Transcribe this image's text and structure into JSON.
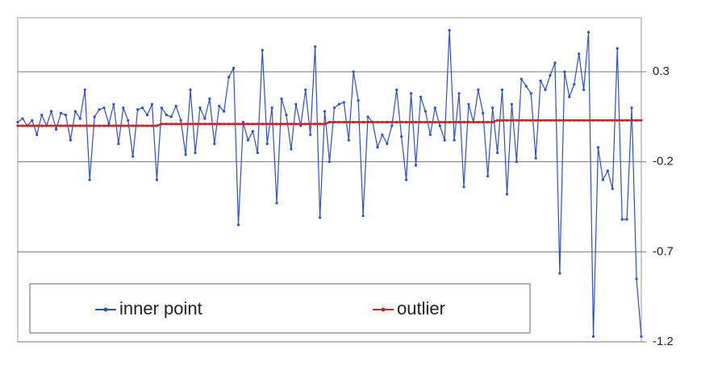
{
  "chart_data": {
    "type": "line",
    "series": [
      {
        "name": "inner point",
        "color": "#2a4fd0",
        "values": [
          0.02,
          0.04,
          0.0,
          0.03,
          -0.05,
          0.06,
          0.0,
          0.08,
          -0.02,
          0.07,
          0.06,
          -0.08,
          0.08,
          0.04,
          0.2,
          -0.3,
          0.05,
          0.09,
          0.1,
          0.01,
          0.12,
          -0.1,
          0.1,
          0.03,
          -0.17,
          0.09,
          0.1,
          0.06,
          0.12,
          -0.3,
          0.1,
          0.06,
          0.05,
          0.11,
          0.03,
          -0.16,
          0.2,
          -0.15,
          0.1,
          0.04,
          0.15,
          -0.1,
          0.11,
          0.08,
          0.27,
          0.32,
          -0.55,
          0.02,
          -0.08,
          -0.03,
          -0.15,
          0.42,
          -0.1,
          0.1,
          -0.43,
          0.15,
          0.06,
          -0.13,
          0.12,
          0.0,
          0.2,
          -0.05,
          0.44,
          -0.51,
          0.08,
          -0.2,
          0.1,
          0.12,
          0.13,
          -0.08,
          0.3,
          0.14,
          -0.5,
          0.05,
          0.02,
          -0.12,
          -0.05,
          -0.1,
          0.0,
          0.2,
          -0.06,
          -0.3,
          0.18,
          -0.22,
          0.16,
          0.08,
          -0.05,
          0.1,
          0.0,
          -0.08,
          0.53,
          -0.08,
          0.18,
          -0.34,
          0.12,
          0.02,
          0.2,
          0.07,
          -0.28,
          0.1,
          -0.15,
          0.2,
          -0.38,
          0.12,
          -0.2,
          0.26,
          0.22,
          0.18,
          -0.18,
          0.25,
          0.2,
          0.28,
          0.35,
          -0.82,
          0.3,
          0.16,
          0.23,
          0.4,
          0.2,
          0.52,
          -1.17,
          -0.12,
          -0.3,
          -0.25,
          -0.35,
          0.43,
          -0.52,
          -0.52,
          0.1,
          -0.85,
          -1.17
        ]
      },
      {
        "name": "outlier",
        "color": "#c0282a",
        "values": [
          0.0,
          0.0,
          0.0,
          0.0,
          0.0,
          0.0,
          0.0,
          0.0,
          0.0,
          0.0,
          0.0,
          0.0,
          0.0,
          0.0,
          0.0,
          0.0,
          0.0,
          0.0,
          0.0,
          0.0,
          0.0,
          0.0,
          0.0,
          0.0,
          0.0,
          0.0,
          0.0,
          0.0,
          0.0,
          0.0,
          0.01,
          0.01,
          0.01,
          0.01,
          0.01,
          0.01,
          0.01,
          0.01,
          0.01,
          0.01,
          0.01,
          0.01,
          0.01,
          0.01,
          0.01,
          0.01,
          0.01,
          0.01,
          0.01,
          0.01,
          0.01,
          0.01,
          0.01,
          0.01,
          0.01,
          0.01,
          0.01,
          0.01,
          0.01,
          0.01,
          0.01,
          0.01,
          0.01,
          0.01,
          0.01,
          0.02,
          0.02,
          0.02,
          0.02,
          0.02,
          0.02,
          0.02,
          0.02,
          0.02,
          0.02,
          0.02,
          0.02,
          0.02,
          0.02,
          0.02,
          0.02,
          0.02,
          0.02,
          0.02,
          0.02,
          0.02,
          0.02,
          0.02,
          0.02,
          0.02,
          0.02,
          0.02,
          0.02,
          0.02,
          0.02,
          0.02,
          0.02,
          0.02,
          0.02,
          0.02,
          0.03,
          0.03,
          0.03,
          0.03,
          0.03,
          0.03,
          0.03,
          0.03,
          0.03,
          0.03,
          0.03,
          0.03,
          0.03,
          0.03,
          0.03,
          0.03,
          0.03,
          0.03,
          0.03,
          0.03,
          0.03,
          0.03,
          0.03,
          0.03,
          0.03,
          0.03,
          0.03,
          0.03,
          0.03,
          0.03,
          0.03
        ]
      }
    ],
    "ylim": [
      -1.2,
      0.6
    ],
    "yticks": [
      0.3,
      -0.2,
      -0.7,
      -1.2
    ],
    "grid": true
  }
}
